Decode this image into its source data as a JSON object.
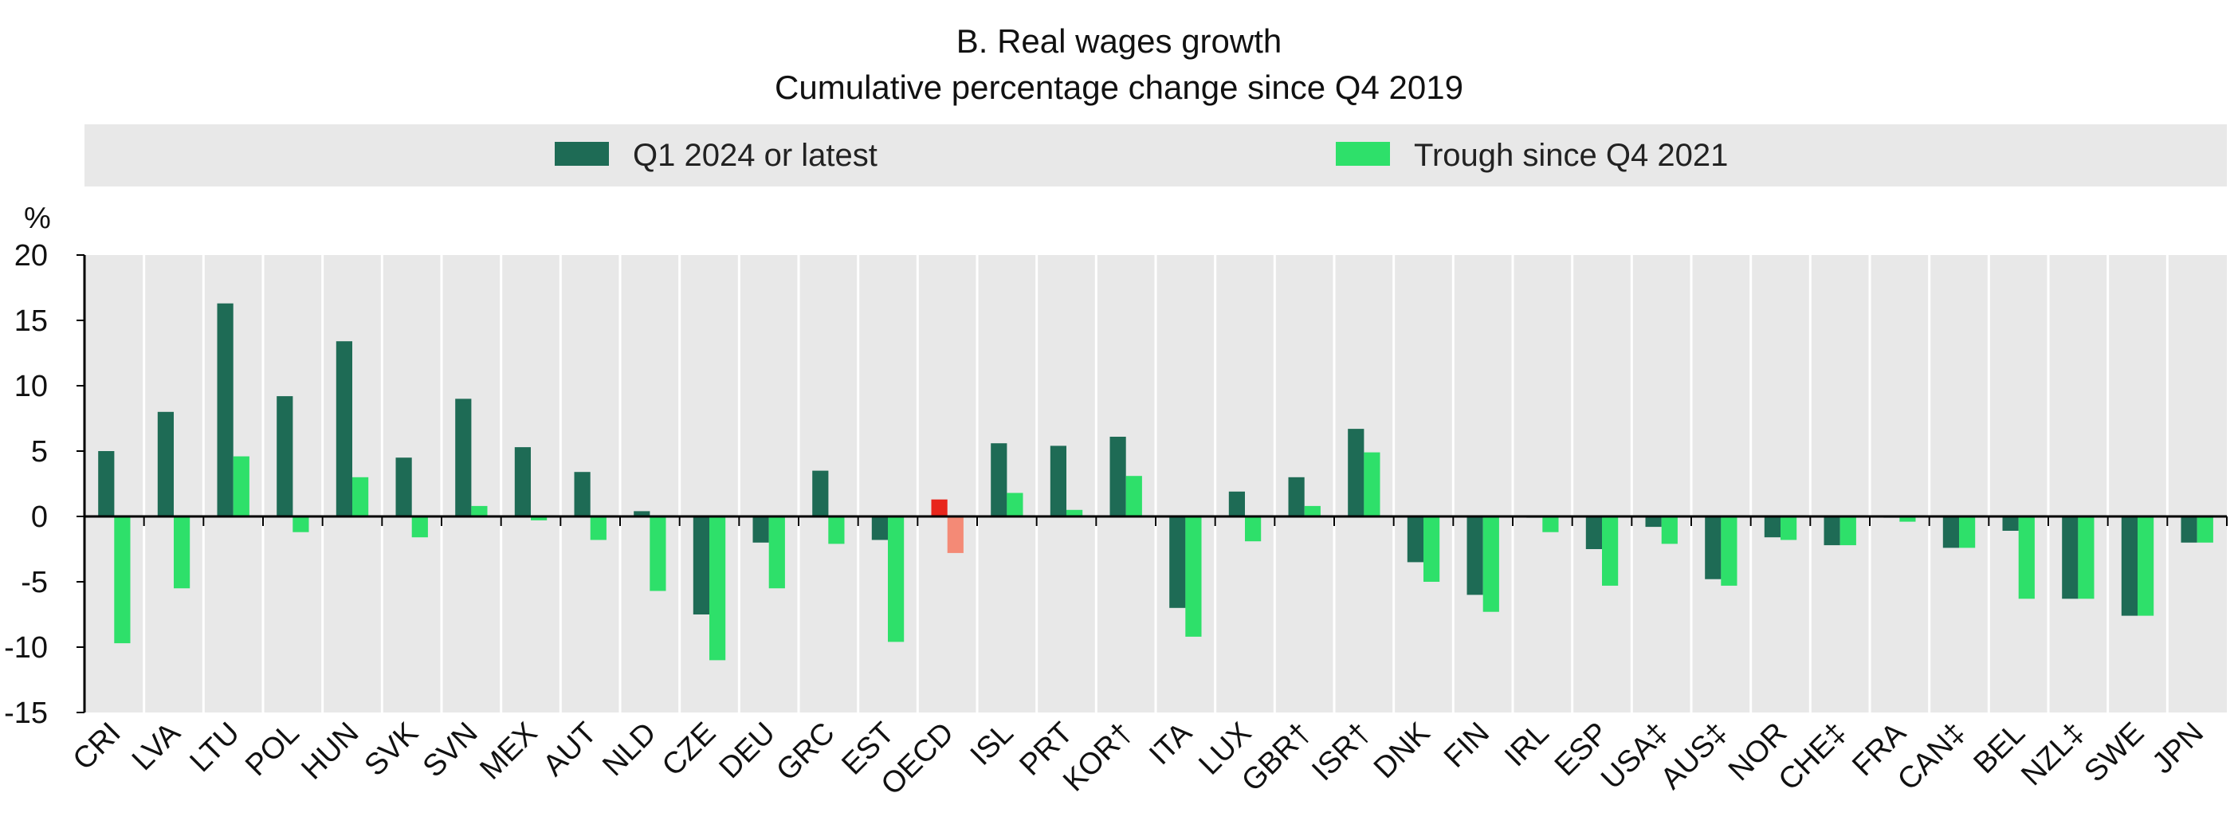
{
  "chart_data": {
    "type": "bar",
    "title": "B. Real wages growth",
    "subtitle": "Cumulative percentage change since Q4 2019",
    "ylabel": "%",
    "ylim": [
      -15,
      20
    ],
    "yticks": [
      20,
      15,
      10,
      5,
      0,
      -5,
      -10,
      -15
    ],
    "legend_position": "top",
    "categories": [
      "CRI",
      "LVA",
      "LTU",
      "POL",
      "HUN",
      "SVK",
      "SVN",
      "MEX",
      "AUT",
      "NLD",
      "CZE",
      "DEU",
      "GRC",
      "EST",
      "OECD",
      "ISL",
      "PRT",
      "KOR†",
      "ITA",
      "LUX",
      "GBR†",
      "ISR†",
      "DNK",
      "FIN",
      "IRL",
      "ESP",
      "USA‡",
      "AUS‡",
      "NOR",
      "CHE‡",
      "FRA",
      "CAN‡",
      "BEL",
      "NZL‡",
      "SWE",
      "JPN"
    ],
    "highlight_category": "OECD",
    "series": [
      {
        "name": "Q1 2024 or latest",
        "color": "#1e6b55",
        "highlight_color": "#e8261c",
        "values": [
          5.0,
          8.0,
          16.3,
          9.2,
          13.4,
          4.5,
          9.0,
          5.3,
          3.4,
          0.4,
          -7.5,
          -2.0,
          3.5,
          -1.8,
          1.3,
          5.6,
          5.4,
          6.1,
          -7.0,
          1.9,
          3.0,
          6.7,
          -3.5,
          -6.0,
          -0.1,
          -2.5,
          -0.8,
          -4.8,
          -1.6,
          -2.2,
          -0.1,
          -2.4,
          -1.1,
          -6.3,
          -7.6,
          -2.0
        ]
      },
      {
        "name": "Trough since Q4 2021",
        "color": "#2ee06a",
        "highlight_color": "#f48a76",
        "values": [
          -9.7,
          -5.5,
          4.6,
          -1.2,
          3.0,
          -1.6,
          0.8,
          -0.3,
          -1.8,
          -5.7,
          -11.0,
          -5.5,
          -2.1,
          -9.6,
          -2.8,
          1.8,
          0.5,
          3.1,
          -9.2,
          -1.9,
          0.8,
          4.9,
          -5.0,
          -7.3,
          -1.2,
          -5.3,
          -2.1,
          -5.3,
          -1.8,
          -2.2,
          -0.4,
          -2.4,
          -6.3,
          -6.3,
          -7.6,
          -2.0
        ]
      }
    ]
  }
}
